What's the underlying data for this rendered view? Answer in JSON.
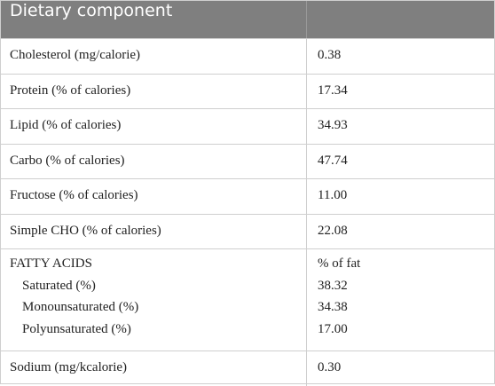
{
  "table": {
    "header": "Dietary component",
    "rows": [
      {
        "label": "Cholesterol (mg/calorie)",
        "value": "0.38"
      },
      {
        "label": "Protein (% of calories)",
        "value": "17.34"
      },
      {
        "label": "Lipid (% of calories)",
        "value": "34.93"
      },
      {
        "label": "Carbo (% of calories)",
        "value": "47.74"
      },
      {
        "label": "Fructose (% of calories)",
        "value": "11.00"
      },
      {
        "label": "Simple CHO (% of calories)",
        "value": "22.08"
      },
      {
        "label": "FATTY ACIDS",
        "value": "% of fat",
        "subrows": [
          {
            "label": "Saturated (%)",
            "value": "38.32"
          },
          {
            "label": "Monounsaturated (%)",
            "value": "34.38"
          },
          {
            "label": "Polyunsaturated (%)",
            "value": "17.00"
          }
        ]
      },
      {
        "label": "Sodium (mg/kcalorie)",
        "value": "0.30"
      }
    ]
  }
}
